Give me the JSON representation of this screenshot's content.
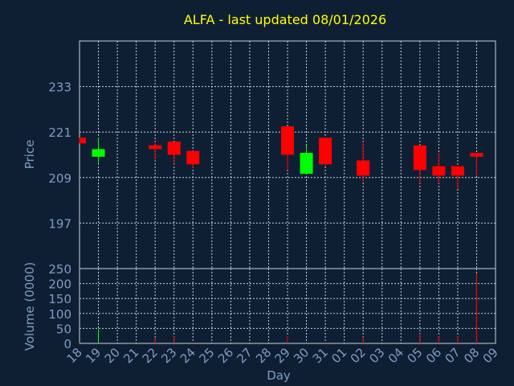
{
  "chart_data": [
    {
      "type": "candlestick",
      "title": "ALFA - last updated 08/01/2026",
      "xlabel": "Day",
      "ylabel": "Price",
      "ylim": [
        185,
        245
      ],
      "yticks": [
        197,
        209,
        221,
        233
      ],
      "grid": true,
      "categories": [
        "18",
        "19",
        "20",
        "21",
        "22",
        "23",
        "24",
        "25",
        "26",
        "27",
        "28",
        "29",
        "30",
        "31",
        "01",
        "02",
        "03",
        "04",
        "05",
        "06",
        "07",
        "08",
        "09"
      ],
      "candles": [
        {
          "day": "18",
          "open": 219.5,
          "high": 219.5,
          "low": 218.0,
          "close": 218.0
        },
        {
          "day": "19",
          "open": 214.5,
          "high": 219.5,
          "low": 212.5,
          "close": 216.5
        },
        {
          "day": "22",
          "open": 217.5,
          "high": 218.5,
          "low": 213.5,
          "close": 216.5
        },
        {
          "day": "23",
          "open": 218.5,
          "high": 218.5,
          "low": 212.5,
          "close": 215.0
        },
        {
          "day": "24",
          "open": 216.0,
          "high": 216.0,
          "low": 211.5,
          "close": 212.5
        },
        {
          "day": "29",
          "open": 222.5,
          "high": 222.5,
          "low": 211.0,
          "close": 215.0
        },
        {
          "day": "30",
          "open": 210.0,
          "high": 217.5,
          "low": 210.0,
          "close": 215.5
        },
        {
          "day": "31",
          "open": 219.5,
          "high": 219.5,
          "low": 212.0,
          "close": 212.5
        },
        {
          "day": "02",
          "open": 213.5,
          "high": 218.5,
          "low": 208.0,
          "close": 209.5
        },
        {
          "day": "05",
          "open": 217.5,
          "high": 217.5,
          "low": 207.5,
          "close": 211.0
        },
        {
          "day": "06",
          "open": 212.0,
          "high": 215.5,
          "low": 207.5,
          "close": 209.5
        },
        {
          "day": "07",
          "open": 212.0,
          "high": 212.0,
          "low": 206.0,
          "close": 209.5
        },
        {
          "day": "08",
          "open": 215.5,
          "high": 215.5,
          "low": 209.5,
          "close": 214.5
        }
      ]
    },
    {
      "type": "bar",
      "ylabel": "Volume (0000)",
      "xlabel": "Day",
      "ylim": [
        0,
        250
      ],
      "yticks": [
        0,
        50,
        100,
        150,
        200,
        250
      ],
      "grid": true,
      "categories": [
        "18",
        "19",
        "20",
        "21",
        "22",
        "23",
        "24",
        "25",
        "26",
        "27",
        "28",
        "29",
        "30",
        "31",
        "01",
        "02",
        "03",
        "04",
        "05",
        "06",
        "07",
        "08",
        "09"
      ],
      "bars": [
        {
          "day": "18",
          "value": 2,
          "color": "#ff0000"
        },
        {
          "day": "19",
          "value": 48,
          "color": "#00ff00"
        },
        {
          "day": "22",
          "value": 20,
          "color": "#ff0000"
        },
        {
          "day": "23",
          "value": 25,
          "color": "#ff0000"
        },
        {
          "day": "24",
          "value": 3,
          "color": "#ff0000"
        },
        {
          "day": "29",
          "value": 25,
          "color": "#ff0000"
        },
        {
          "day": "30",
          "value": 3,
          "color": "#00ff00"
        },
        {
          "day": "31",
          "value": 3,
          "color": "#ff0000"
        },
        {
          "day": "02",
          "value": 22,
          "color": "#ff0000"
        },
        {
          "day": "05",
          "value": 32,
          "color": "#ff0000"
        },
        {
          "day": "06",
          "value": 25,
          "color": "#ff0000"
        },
        {
          "day": "07",
          "value": 25,
          "color": "#ff0000"
        },
        {
          "day": "08",
          "value": 235,
          "color": "#ff0000"
        }
      ]
    }
  ],
  "colors": {
    "background": "#0f1f33",
    "title": "#ffff00",
    "axis_text": "#7f9cc4",
    "grid": "#c8d0dc",
    "up": "#00ff00",
    "down": "#ff0000"
  }
}
